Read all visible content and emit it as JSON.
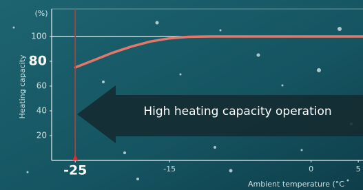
{
  "chart_data": {
    "type": "line",
    "y_unit": "(%)",
    "y_label": "Heating capacity",
    "x_label": "Ambient temperature (°C",
    "annotation": "High heating capacity operation",
    "x": [
      -25,
      -23,
      -21,
      -19,
      -17,
      -15,
      -13,
      -11,
      0,
      5.5
    ],
    "series": [
      {
        "name": "Heating capacity",
        "color": "#e3786a",
        "values": [
          75,
          81,
          87,
          92,
          96,
          98.5,
          99.7,
          100,
          100,
          100
        ]
      }
    ],
    "reference_line": {
      "x": -25,
      "color": "#d9302b"
    },
    "xlim": [
      -27.5,
      5.5
    ],
    "xticks": [
      -25,
      -15,
      0,
      5
    ],
    "ylim": [
      0,
      120
    ],
    "yticks": [
      20,
      40,
      60,
      80,
      100
    ],
    "grid_lines_at": [
      100
    ]
  }
}
